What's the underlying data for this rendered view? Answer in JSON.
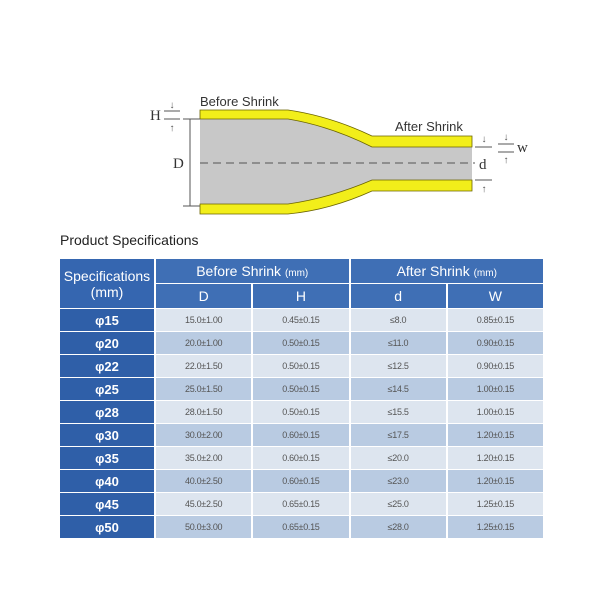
{
  "diagram": {
    "before_label": "Before Shrink",
    "after_label": "After Shrink",
    "dim_H": "H",
    "dim_D": "D",
    "dim_d": "d",
    "dim_w": "w",
    "colors": {
      "tube": "#c8c8c8",
      "wall": "#f2ee1a"
    }
  },
  "title": "Product Specifications",
  "table": {
    "spec_header": "Specifications",
    "spec_unit": "(mm)",
    "before_header": "Before Shrink",
    "after_header": "After Shrink",
    "unit": "(mm)",
    "columns": [
      "D",
      "H",
      "d",
      "W"
    ],
    "rows": [
      {
        "spec": "φ15",
        "D": "15.0±1.00",
        "H": "0.45±0.15",
        "d": "≤8.0",
        "W": "0.85±0.15"
      },
      {
        "spec": "φ20",
        "D": "20.0±1.00",
        "H": "0.50±0.15",
        "d": "≤11.0",
        "W": "0.90±0.15"
      },
      {
        "spec": "φ22",
        "D": "22.0±1.50",
        "H": "0.50±0.15",
        "d": "≤12.5",
        "W": "0.90±0.15"
      },
      {
        "spec": "φ25",
        "D": "25.0±1.50",
        "H": "0.50±0.15",
        "d": "≤14.5",
        "W": "1.00±0.15"
      },
      {
        "spec": "φ28",
        "D": "28.0±1.50",
        "H": "0.50±0.15",
        "d": "≤15.5",
        "W": "1.00±0.15"
      },
      {
        "spec": "φ30",
        "D": "30.0±2.00",
        "H": "0.60±0.15",
        "d": "≤17.5",
        "W": "1.20±0.15"
      },
      {
        "spec": "φ35",
        "D": "35.0±2.00",
        "H": "0.60±0.15",
        "d": "≤20.0",
        "W": "1.20±0.15"
      },
      {
        "spec": "φ40",
        "D": "40.0±2.50",
        "H": "0.60±0.15",
        "d": "≤23.0",
        "W": "1.20±0.15"
      },
      {
        "spec": "φ45",
        "D": "45.0±2.50",
        "H": "0.65±0.15",
        "d": "≤25.0",
        "W": "1.25±0.15"
      },
      {
        "spec": "φ50",
        "D": "50.0±3.00",
        "H": "0.65±0.15",
        "d": "≤28.0",
        "W": "1.25±0.15"
      }
    ]
  }
}
